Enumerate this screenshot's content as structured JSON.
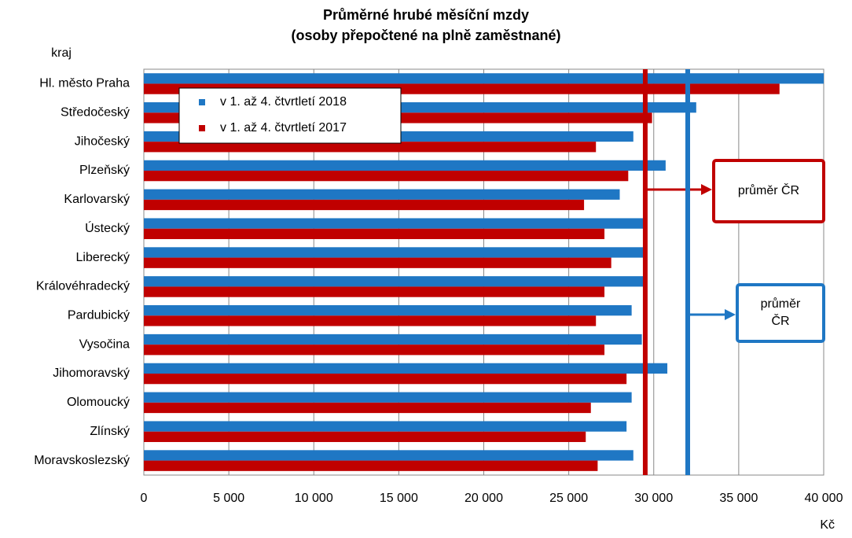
{
  "chart_data": {
    "type": "hbar",
    "title": "Průměrné hrubé měsíční mzdy",
    "subtitle": "(osoby přepočtené na plně zaměstnané)",
    "y_label": "kraj",
    "x_label": "Kč",
    "categories": [
      "Hl. město Praha",
      "Středočeský",
      "Jihočeský",
      "Plzeňský",
      "Karlovarský",
      "Ústecký",
      "Liberecký",
      "Královéhradecký",
      "Pardubický",
      "Vysočina",
      "Jihomoravský",
      "Olomoucký",
      "Zlínský",
      "Moravskoslezský"
    ],
    "series": [
      {
        "name": "v 1. až 4. čtvrtletí 2018",
        "color": "#1f77c4",
        "values": [
          40000,
          32500,
          28800,
          30700,
          28000,
          29400,
          29500,
          29500,
          28700,
          29300,
          30800,
          28700,
          28400,
          28800
        ]
      },
      {
        "name": "v 1. až 4. čtvrtletí 2017",
        "color": "#c00000",
        "values": [
          37400,
          29900,
          26600,
          28500,
          25900,
          27100,
          27500,
          27100,
          26600,
          27100,
          28400,
          26300,
          26000,
          26700
        ]
      }
    ],
    "reference_lines": [
      {
        "value": 29500,
        "color": "#c00000",
        "label": "průměr ČR"
      },
      {
        "value": 32000,
        "color": "#1f77c4",
        "label": "průměr ČR"
      }
    ],
    "xlim": [
      0,
      40000
    ],
    "xticks": [
      0,
      {
        "value": 5000,
        "label": "5 000"
      },
      {
        "value": 10000,
        "label": "10 000"
      },
      {
        "value": 15000,
        "label": "15 000"
      },
      {
        "value": 20000,
        "label": "20 000"
      },
      {
        "value": 25000,
        "label": "25 000"
      },
      {
        "value": 30000,
        "label": "30 000"
      },
      {
        "value": 35000,
        "label": "35 000"
      },
      {
        "value": 40000,
        "label": "40 000"
      }
    ],
    "grid": true
  }
}
